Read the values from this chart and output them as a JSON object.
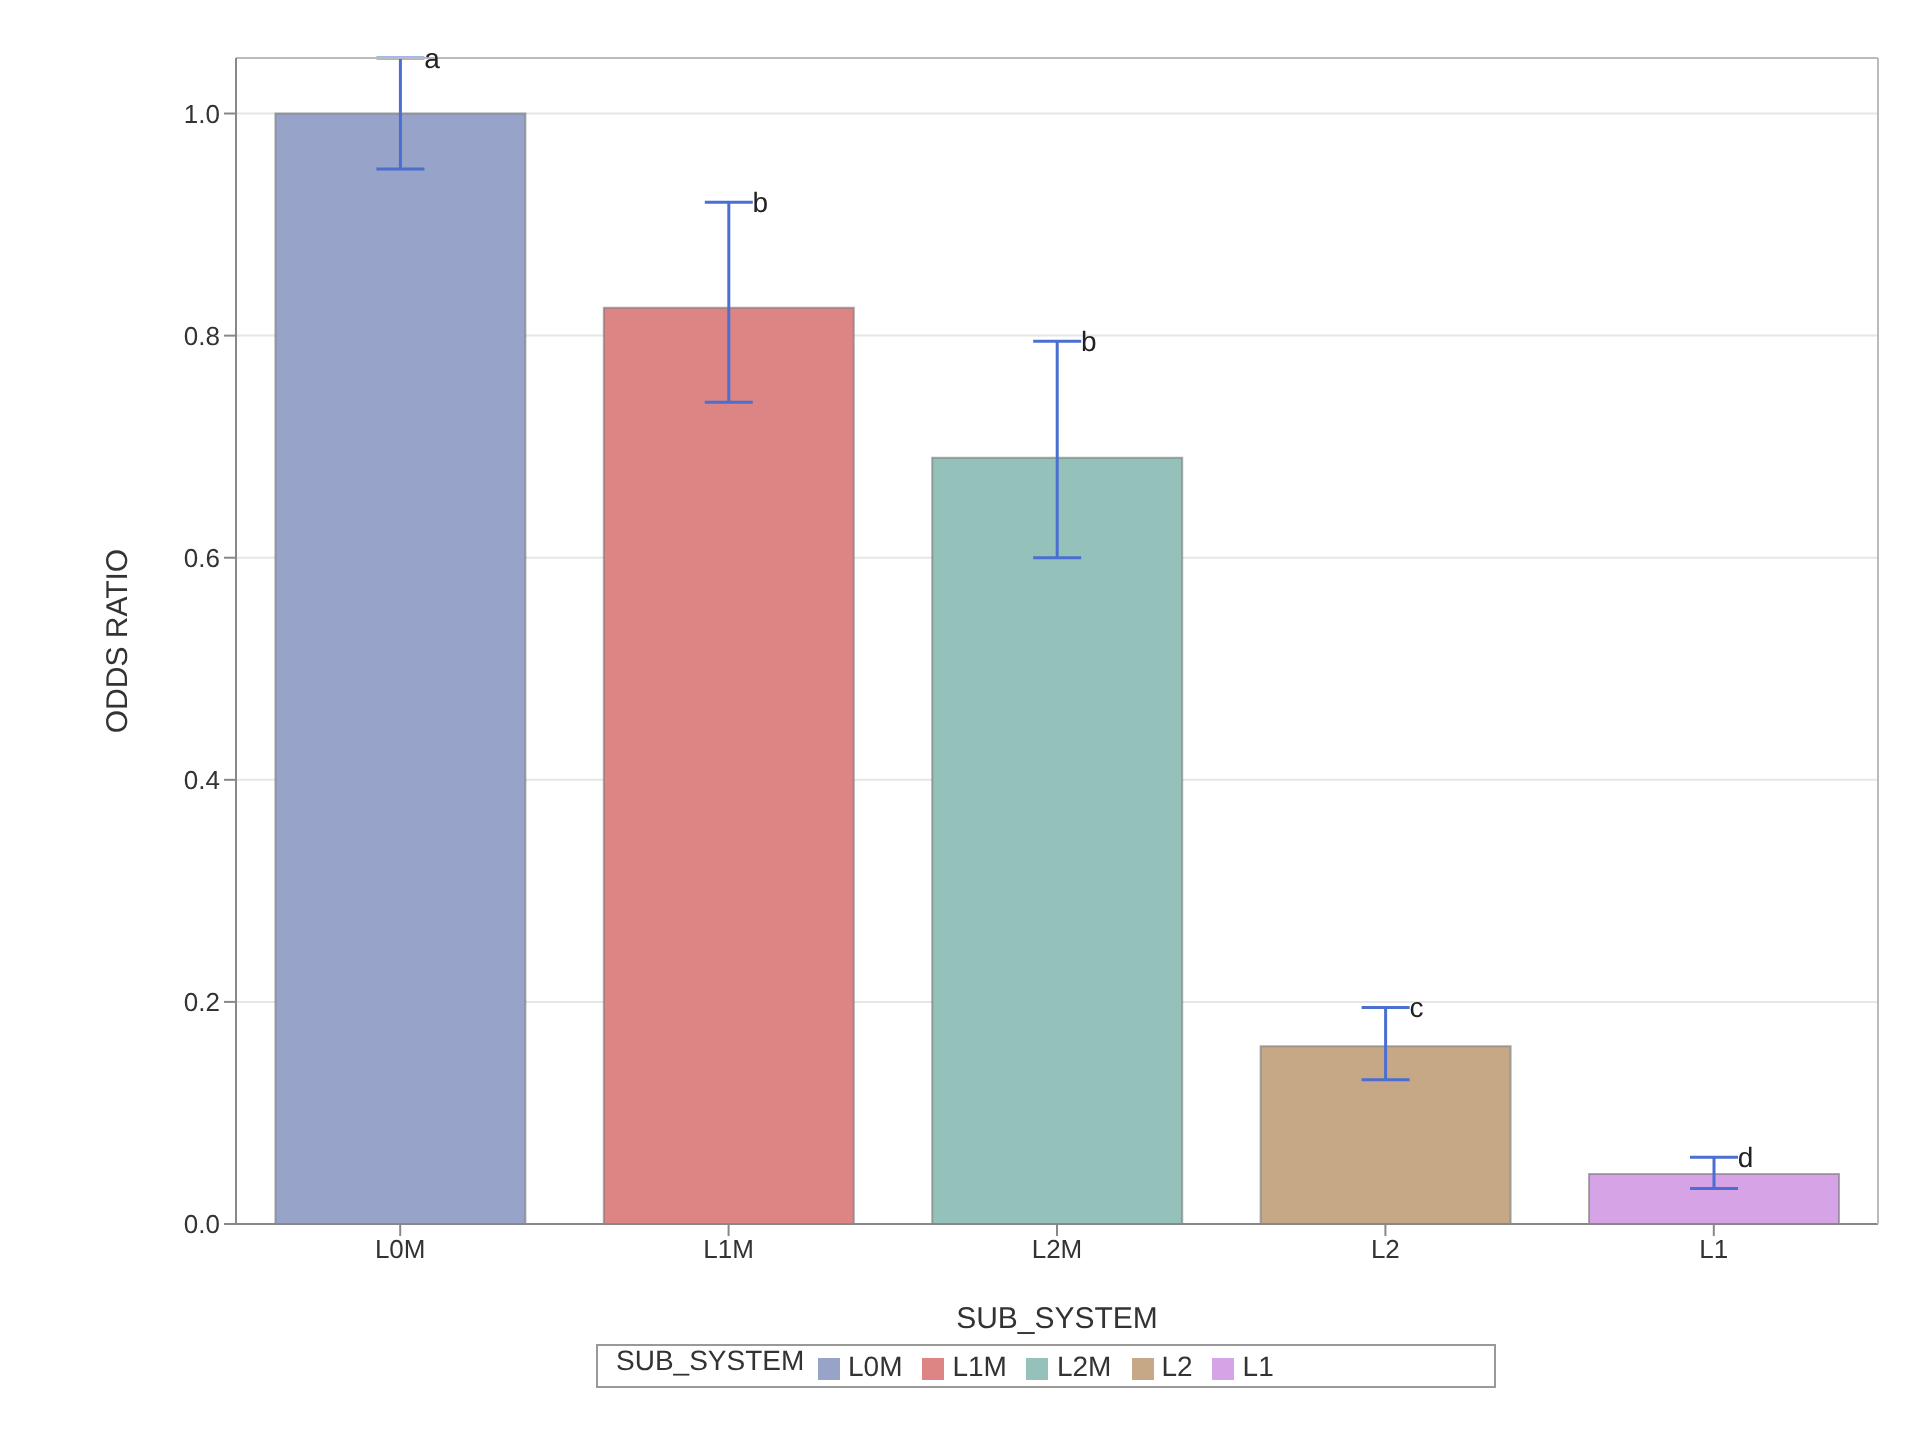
{
  "chart_data": {
    "type": "bar",
    "xlabel": "SUB_SYSTEM",
    "ylabel": "ODDS RATIO",
    "legend_title": "SUB_SYSTEM",
    "categories": [
      "L0M",
      "L1M",
      "L2M",
      "L2",
      "L1"
    ],
    "stacked": true,
    "series": [
      {
        "name": "L0M",
        "color": "#97a3c9",
        "values": [
          1.0,
          null,
          null,
          null,
          null
        ],
        "errors": [
          [
            0.95,
            1.05
          ],
          null,
          null,
          null,
          null
        ]
      },
      {
        "name": "L1M",
        "color": "#dd8585",
        "values": [
          null,
          0.825,
          null,
          null,
          null
        ],
        "errors": [
          null,
          [
            0.74,
            0.92
          ],
          null,
          null,
          null
        ]
      },
      {
        "name": "L2M",
        "color": "#94c2bb",
        "values": [
          null,
          null,
          0.69,
          null,
          null
        ],
        "errors": [
          null,
          null,
          [
            0.6,
            0.795
          ],
          null,
          null
        ]
      },
      {
        "name": "L2",
        "color": "#c6a886",
        "values": [
          null,
          null,
          null,
          0.16,
          null
        ],
        "errors": [
          null,
          null,
          null,
          [
            0.13,
            0.195
          ],
          null
        ]
      },
      {
        "name": "L1",
        "color": "#d6a4e6",
        "values": [
          null,
          null,
          null,
          null,
          0.045
        ],
        "errors": [
          null,
          null,
          null,
          null,
          [
            0.032,
            0.06
          ]
        ]
      }
    ],
    "annotations": [
      {
        "text": "a",
        "x": "L0M",
        "y": 1.05
      },
      {
        "text": "b",
        "x": "L1M",
        "y": 0.92
      },
      {
        "text": "b",
        "x": "L2M",
        "y": 0.795
      },
      {
        "text": "c",
        "x": "L2",
        "y": 0.195
      },
      {
        "text": "d",
        "x": "L1",
        "y": 0.06
      }
    ],
    "ylim": [
      0,
      1.05
    ],
    "yticks": [
      {
        "value": 0,
        "label": "0.0"
      },
      {
        "value": 0.2,
        "label": "0.2"
      },
      {
        "value": 0.4,
        "label": "0.4"
      },
      {
        "value": 0.6,
        "label": "0.6"
      },
      {
        "value": 0.8,
        "label": "0.8"
      },
      {
        "value": 1,
        "label": "1.0"
      }
    ],
    "grid": "y",
    "legend": "bottom"
  }
}
